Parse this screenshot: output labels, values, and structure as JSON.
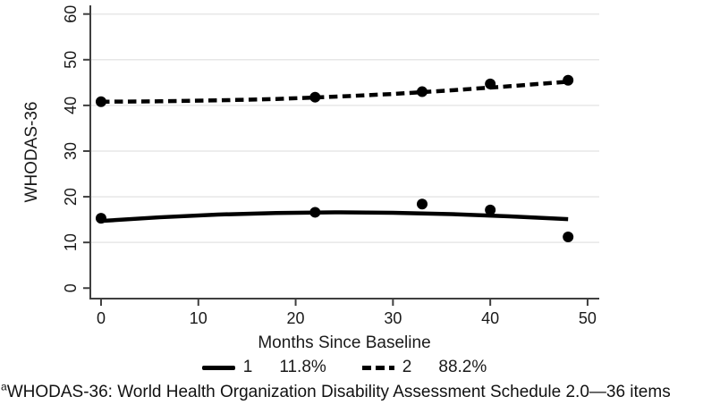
{
  "figure": {
    "footnote": {
      "superscript": "a",
      "text": "WHODAS-36: World Health Organization Disability Assessment Schedule 2.0—36 items"
    }
  },
  "chart_data": {
    "type": "line",
    "title": "",
    "xlabel": "Months Since Baseline",
    "ylabel": "WHODAS-36",
    "x_ticks": [
      0,
      10,
      20,
      30,
      40,
      50
    ],
    "y_ticks": [
      0,
      10,
      20,
      30,
      40,
      50,
      60
    ],
    "xlim": [
      -1.1,
      51.2
    ],
    "ylim": [
      -2.3,
      61.9
    ],
    "grid": "horizontal-light",
    "gridline_color": "#e7e7e7",
    "axis_color": "#3f3f3f",
    "series_color": "#000000",
    "legend_position": "bottom",
    "series": [
      {
        "name": "1",
        "legend_share": "11.8%",
        "line_style": "solid",
        "fitted": {
          "x": [
            0,
            6,
            12,
            18,
            24,
            30,
            36,
            42,
            48
          ],
          "y": [
            14.7,
            15.5,
            16.1,
            16.45,
            16.6,
            16.5,
            16.2,
            15.7,
            15.1
          ]
        },
        "observed": {
          "x": [
            0,
            22,
            33,
            40,
            48
          ],
          "y": [
            15.3,
            16.6,
            18.4,
            17.1,
            11.2
          ]
        }
      },
      {
        "name": "2",
        "legend_share": "88.2%",
        "line_style": "dashed",
        "fitted": {
          "x": [
            0,
            6,
            12,
            18,
            24,
            30,
            36,
            42,
            48
          ],
          "y": [
            40.8,
            40.9,
            41.1,
            41.4,
            41.9,
            42.5,
            43.3,
            44.2,
            45.2
          ]
        },
        "observed": {
          "x": [
            0,
            22,
            33,
            40,
            48
          ],
          "y": [
            40.8,
            41.8,
            43.0,
            44.7,
            45.5
          ]
        }
      }
    ]
  }
}
